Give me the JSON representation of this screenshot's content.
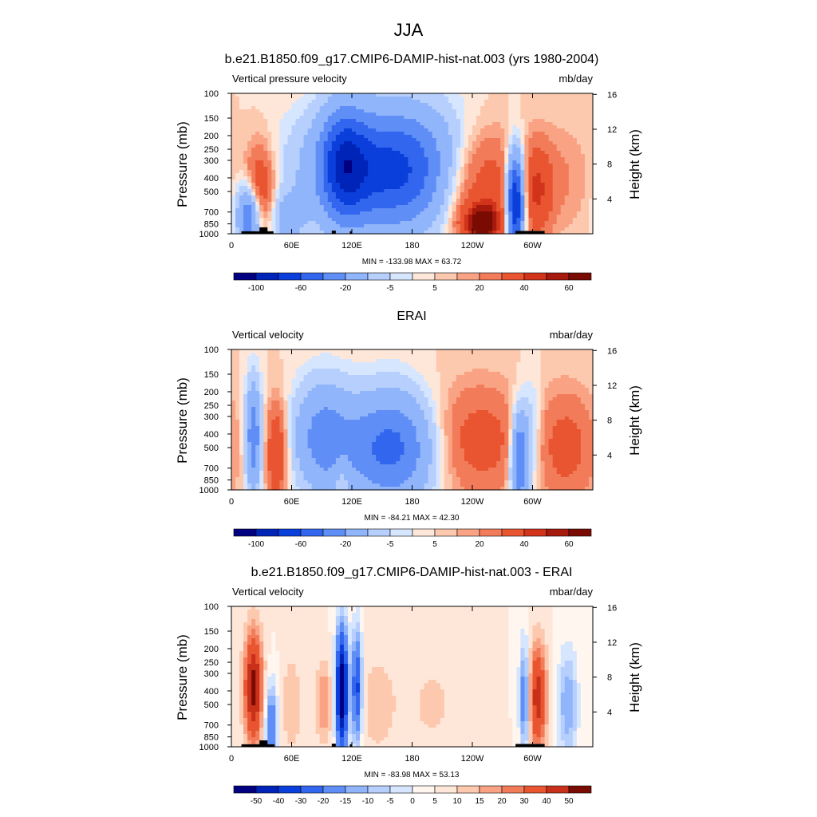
{
  "figure": {
    "title": "JJA"
  },
  "panels": [
    {
      "title": "b.e21.B1850.f09_g17.CMIP6-DAMIP-hist-nat.003 (yrs 1980-2004)",
      "left_label": "Vertical pressure velocity",
      "right_label": "mb/day",
      "ylabel": "Pressure (mb)",
      "ylabel_right": "Height (km)",
      "stats": "MIN = -133.98  MAX =  63.72",
      "colorbar_labels": [
        "-100",
        "-60",
        "-20",
        "-5",
        "5",
        "20",
        "40",
        "60"
      ]
    },
    {
      "title": "ERAI",
      "left_label": "Vertical velocity",
      "right_label": "mbar/day",
      "ylabel": "Pressure (mb)",
      "ylabel_right": "Height (km)",
      "stats": "MIN = -84.21  MAX =  42.30",
      "colorbar_labels": [
        "-100",
        "-60",
        "-20",
        "-5",
        "5",
        "20",
        "40",
        "60"
      ]
    },
    {
      "title": "b.e21.B1850.f09_g17.CMIP6-DAMIP-hist-nat.003 - ERAI",
      "left_label": "Vertical velocity",
      "right_label": "mbar/day",
      "ylabel": "Pressure (mb)",
      "ylabel_right": "Height (km)",
      "stats": "MIN = -83.98  MAX =  53.13",
      "colorbar_labels": [
        "-50",
        "-40",
        "-30",
        "-20",
        "-15",
        "-10",
        "-5",
        "0",
        "5",
        "10",
        "15",
        "20",
        "30",
        "40",
        "50"
      ]
    }
  ],
  "colors": {
    "diverging": [
      "#000080",
      "#0024b8",
      "#0a3fdb",
      "#3366ee",
      "#5f8ef6",
      "#91b5fb",
      "#b6cffd",
      "#d7e6ff",
      "#fee7d8",
      "#fcc8ae",
      "#f9a384",
      "#f27c5a",
      "#e95530",
      "#d1331b",
      "#a51a0d",
      "#7a0b03"
    ],
    "anomaly": [
      "#000080",
      "#0024b8",
      "#0a3fdb",
      "#3366ee",
      "#5f8ef6",
      "#91b5fb",
      "#b6cffd",
      "#d7e6ff",
      "#fff6ef",
      "#fee7d8",
      "#fcc8ae",
      "#f9a384",
      "#f27c5a",
      "#e95530",
      "#c9301a",
      "#7a0b03"
    ],
    "land": "#000000"
  },
  "chart_data": [
    {
      "type": "heatmap",
      "title": "b.e21.B1850.f09_g17.CMIP6-DAMIP-hist-nat.003 (yrs 1980-2004)",
      "subtitle": "Vertical pressure velocity",
      "units": "mb/day",
      "ylabel": "Pressure (mb)",
      "ylabel_right": "Height (km)",
      "x_ticks": [
        "0",
        "60E",
        "120E",
        "180",
        "120W",
        "60W"
      ],
      "x_range_deg": [
        0,
        360
      ],
      "y_ticks": [
        100,
        150,
        200,
        250,
        300,
        400,
        500,
        700,
        850,
        1000
      ],
      "y_right_ticks": [
        4,
        8,
        12,
        16
      ],
      "y_scale": "log-pressure",
      "contour_levels": [
        -120,
        -100,
        -80,
        -60,
        -40,
        -20,
        -10,
        -5,
        0,
        5,
        10,
        20,
        40,
        50,
        60
      ],
      "min": -133.98,
      "max": 63.72,
      "features": [
        {
          "lon": 160,
          "p": 350,
          "value": -90,
          "width_deg": 75,
          "depth": 2.2
        },
        {
          "lon": 112,
          "p": 320,
          "value": -60,
          "width_deg": 22,
          "depth": 2.0
        },
        {
          "lon": 18,
          "p": 750,
          "value": -70,
          "width_deg": 12,
          "depth": 1.2
        },
        {
          "lon": 28,
          "p": 500,
          "value": 45,
          "width_deg": 14,
          "depth": 1.6
        },
        {
          "lon": 55,
          "p": 800,
          "value": -25,
          "width_deg": 18,
          "depth": 1.0
        },
        {
          "lon": 245,
          "p": 420,
          "value": 45,
          "width_deg": 45,
          "depth": 2.0
        },
        {
          "lon": 250,
          "p": 850,
          "value": 60,
          "width_deg": 22,
          "depth": 0.8
        },
        {
          "lon": 283,
          "p": 600,
          "value": -120,
          "width_deg": 9,
          "depth": 1.8
        },
        {
          "lon": 305,
          "p": 500,
          "value": 35,
          "width_deg": 14,
          "depth": 1.6
        },
        {
          "lon": 330,
          "p": 400,
          "value": 10,
          "width_deg": 30,
          "depth": 2.0
        }
      ],
      "land": [
        {
          "lon_start": 10,
          "lon_end": 42,
          "p_top": 960
        },
        {
          "lon_start": 28,
          "lon_end": 36,
          "p_top": 900
        },
        {
          "lon_start": 100,
          "lon_end": 104,
          "p_top": 950
        },
        {
          "lon_start": 118,
          "lon_end": 120,
          "p_top": 960
        },
        {
          "lon_start": 283,
          "lon_end": 312,
          "p_top": 955
        }
      ]
    },
    {
      "type": "heatmap",
      "title": "ERAI",
      "subtitle": "Vertical velocity",
      "units": "mbar/day",
      "ylabel": "Pressure (mb)",
      "ylabel_right": "Height (km)",
      "x_ticks": [
        "0",
        "60E",
        "120E",
        "180",
        "120W",
        "60W"
      ],
      "x_range_deg": [
        0,
        360
      ],
      "y_ticks": [
        100,
        150,
        200,
        250,
        300,
        400,
        500,
        700,
        850,
        1000
      ],
      "y_right_ticks": [
        4,
        8,
        12,
        16
      ],
      "y_scale": "log-pressure",
      "contour_levels": [
        -120,
        -100,
        -80,
        -60,
        -40,
        -20,
        -10,
        -5,
        0,
        5,
        10,
        20,
        40,
        50,
        60
      ],
      "min": -84.21,
      "max": 42.3,
      "features": [
        {
          "lon": 160,
          "p": 500,
          "value": -70,
          "width_deg": 48,
          "depth": 2.0
        },
        {
          "lon": 90,
          "p": 420,
          "value": -45,
          "width_deg": 28,
          "depth": 2.0
        },
        {
          "lon": 22,
          "p": 420,
          "value": -55,
          "width_deg": 8,
          "depth": 2.0
        },
        {
          "lon": 45,
          "p": 550,
          "value": 40,
          "width_deg": 10,
          "depth": 1.8
        },
        {
          "lon": 110,
          "p": 800,
          "value": 15,
          "width_deg": 8,
          "depth": 1.0
        },
        {
          "lon": 240,
          "p": 450,
          "value": 30,
          "width_deg": 55,
          "depth": 2.0
        },
        {
          "lon": 287,
          "p": 600,
          "value": -70,
          "width_deg": 9,
          "depth": 1.8
        },
        {
          "lon": 300,
          "p": 400,
          "value": -20,
          "width_deg": 10,
          "depth": 2.0
        },
        {
          "lon": 335,
          "p": 500,
          "value": 25,
          "width_deg": 28,
          "depth": 2.0
        }
      ],
      "land": []
    },
    {
      "type": "heatmap",
      "title": "b.e21.B1850.f09_g17.CMIP6-DAMIP-hist-nat.003 - ERAI",
      "subtitle": "Vertical velocity",
      "units": "mbar/day",
      "ylabel": "Pressure (mb)",
      "ylabel_right": "Height (km)",
      "x_ticks": [
        "0",
        "60E",
        "120E",
        "180",
        "120W",
        "60W"
      ],
      "x_range_deg": [
        0,
        360
      ],
      "y_ticks": [
        100,
        150,
        200,
        250,
        300,
        400,
        500,
        700,
        850,
        1000
      ],
      "y_right_ticks": [
        4,
        8,
        12,
        16
      ],
      "y_scale": "log-pressure",
      "contour_levels": [
        -60,
        -50,
        -40,
        -30,
        -20,
        -15,
        -10,
        -5,
        0,
        5,
        10,
        15,
        20,
        30,
        40,
        50
      ],
      "min": -83.98,
      "max": 53.13,
      "features": [
        {
          "lon": 22,
          "p": 380,
          "value": 45,
          "width_deg": 9,
          "depth": 2.0
        },
        {
          "lon": 40,
          "p": 700,
          "value": -30,
          "width_deg": 6,
          "depth": 1.5
        },
        {
          "lon": 60,
          "p": 500,
          "value": 10,
          "width_deg": 10,
          "depth": 1.8
        },
        {
          "lon": 92,
          "p": 480,
          "value": 15,
          "width_deg": 9,
          "depth": 1.5
        },
        {
          "lon": 110,
          "p": 400,
          "value": -75,
          "width_deg": 6,
          "depth": 2.2
        },
        {
          "lon": 125,
          "p": 380,
          "value": -45,
          "width_deg": 5,
          "depth": 2.0
        },
        {
          "lon": 145,
          "p": 500,
          "value": 8,
          "width_deg": 20,
          "depth": 2.0
        },
        {
          "lon": 200,
          "p": 500,
          "value": 6,
          "width_deg": 30,
          "depth": 2.0
        },
        {
          "lon": 292,
          "p": 450,
          "value": -30,
          "width_deg": 5,
          "depth": 2.0
        },
        {
          "lon": 305,
          "p": 450,
          "value": 35,
          "width_deg": 9,
          "depth": 2.0
        },
        {
          "lon": 335,
          "p": 500,
          "value": -20,
          "width_deg": 10,
          "depth": 2.0
        }
      ],
      "land": [
        {
          "lon_start": 10,
          "lon_end": 43,
          "p_top": 960
        },
        {
          "lon_start": 28,
          "lon_end": 36,
          "p_top": 900
        },
        {
          "lon_start": 100,
          "lon_end": 104,
          "p_top": 950
        },
        {
          "lon_start": 118,
          "lon_end": 120,
          "p_top": 960
        },
        {
          "lon_start": 283,
          "lon_end": 312,
          "p_top": 955
        }
      ]
    }
  ]
}
